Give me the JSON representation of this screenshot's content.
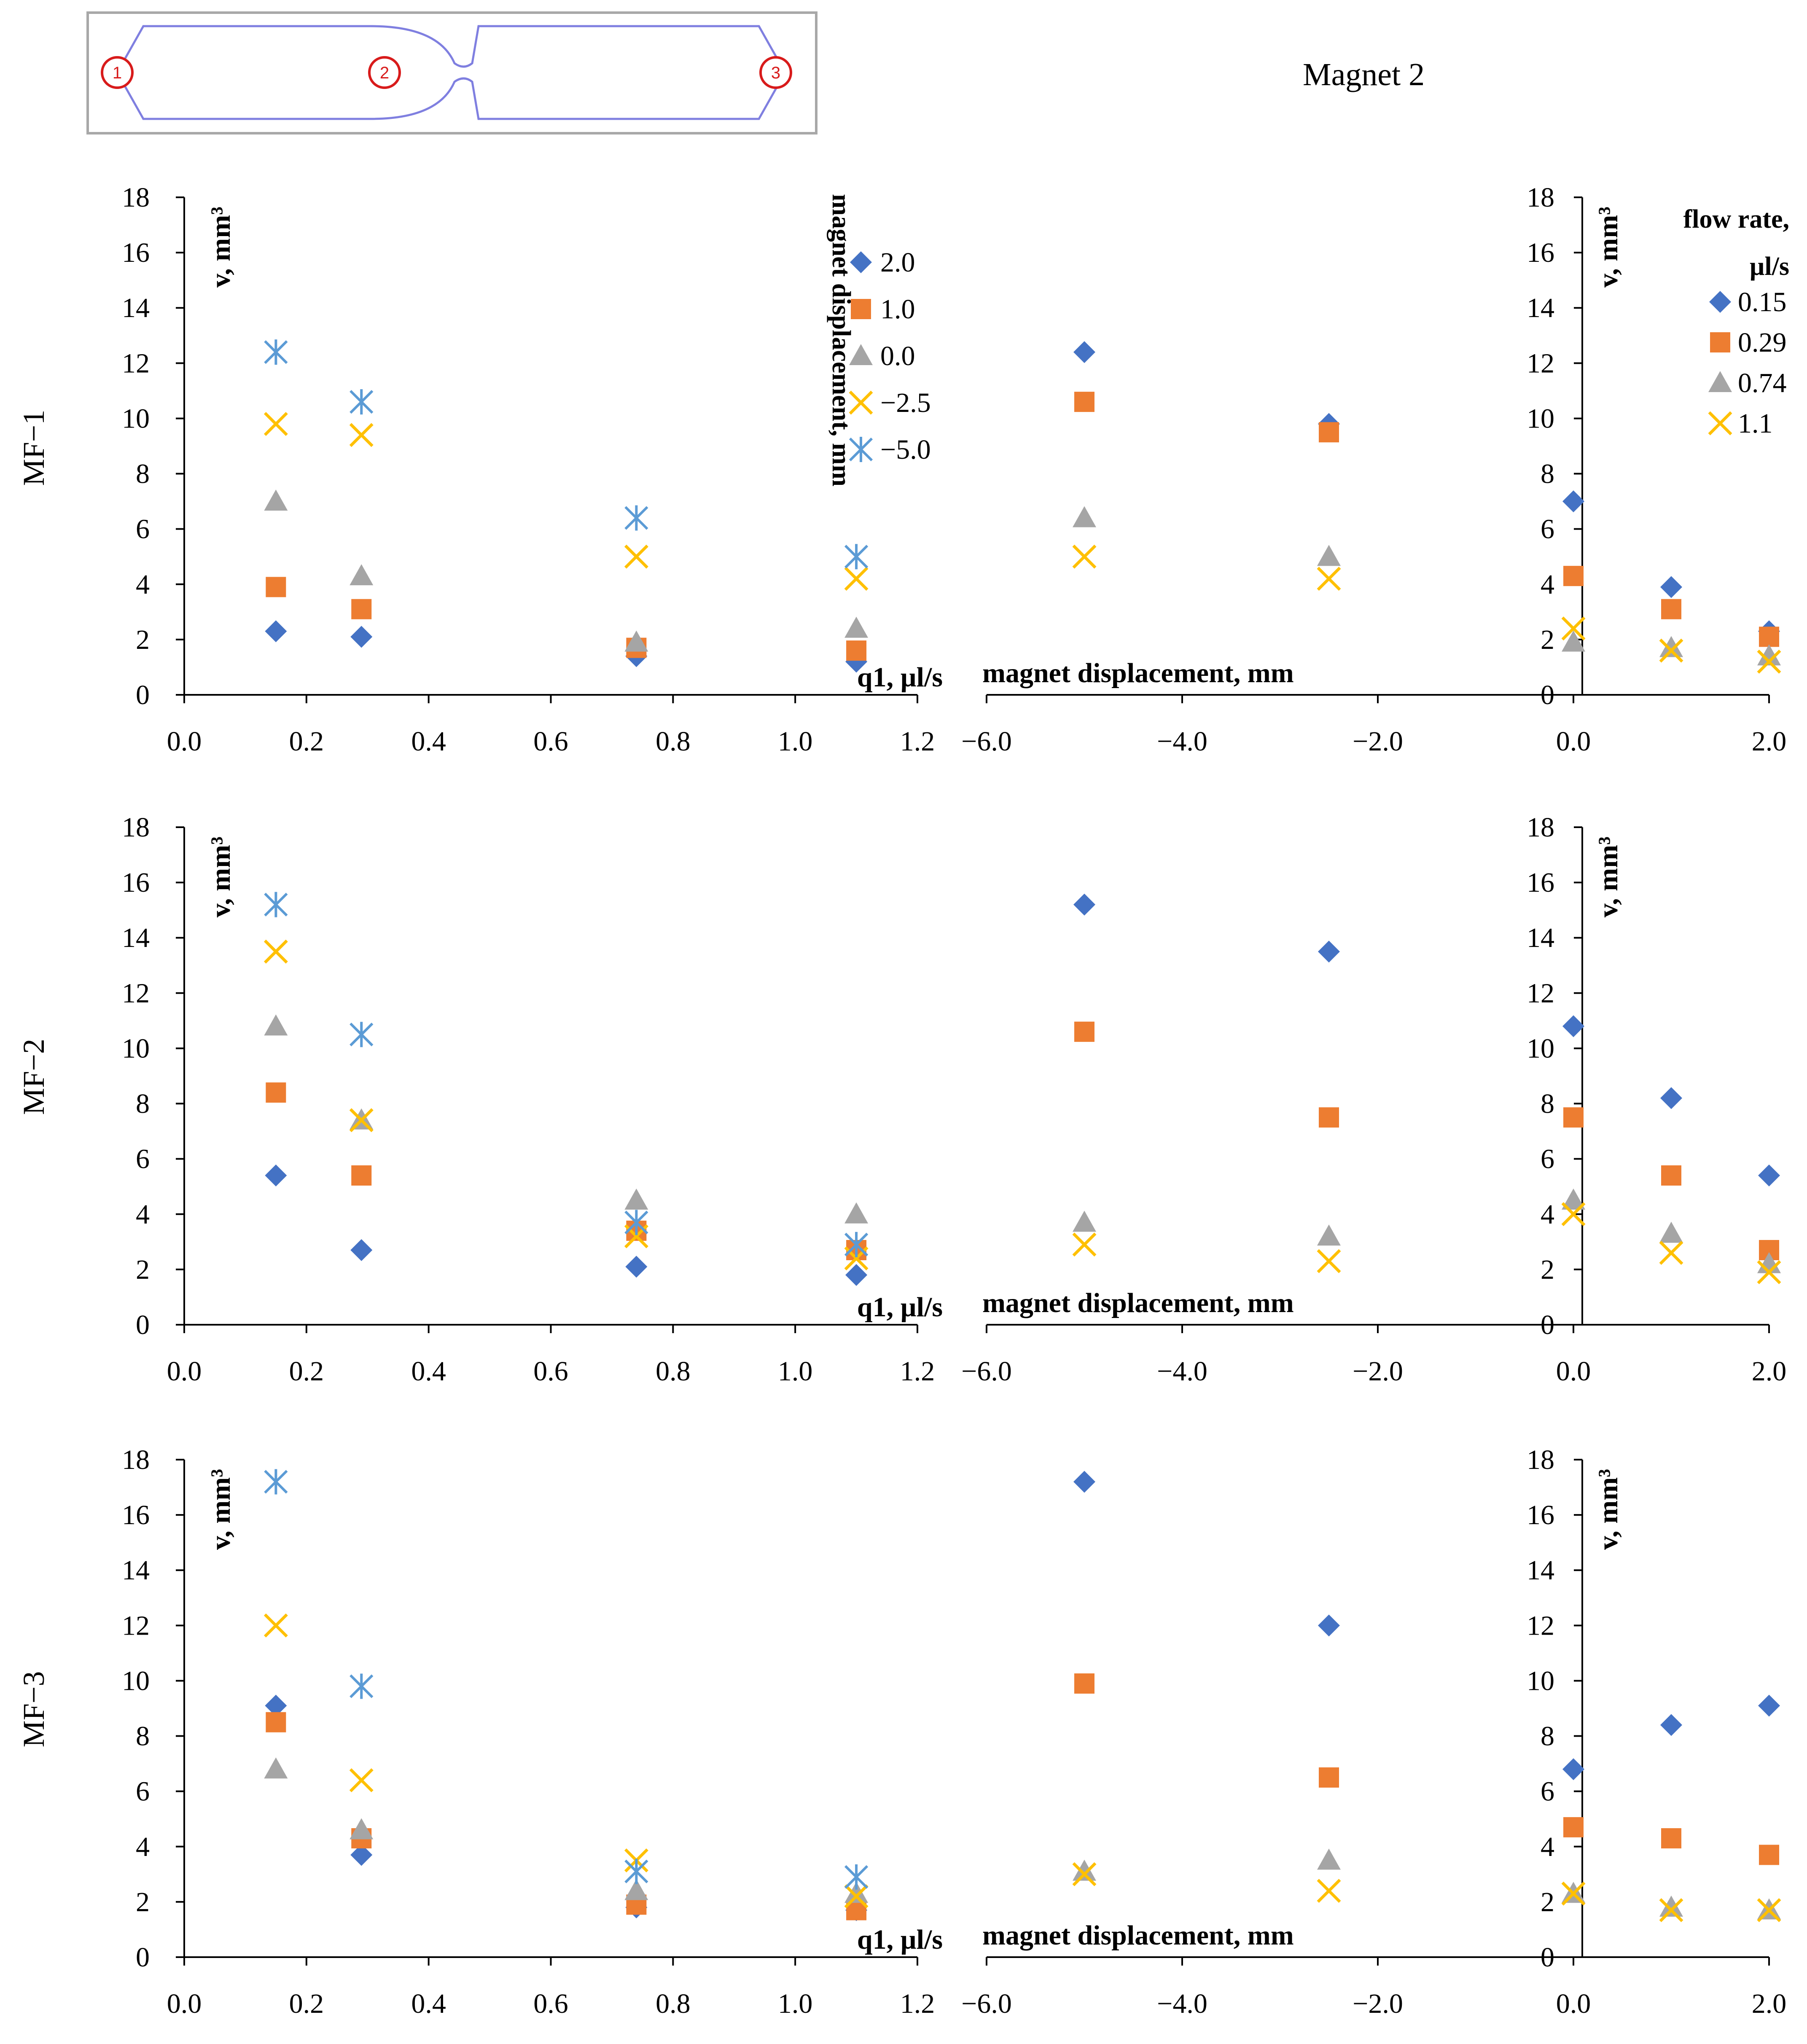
{
  "figure": {
    "title": "Magnet 2",
    "inset_markers": [
      "1",
      "2",
      "3"
    ]
  },
  "colors": {
    "s_2_0": "#4472c4",
    "s_1_0": "#ed7d31",
    "s_0_0": "#a5a5a5",
    "s_m2_5": "#ffc000",
    "s_m5_0": "#5b9bd5",
    "axis": "#000000",
    "inset_channel": "#7f7fe0",
    "inset_marker": "#d81b1b"
  },
  "legend_left": {
    "title": "magnet displacement, mm",
    "entries": [
      {
        "label": "2.0",
        "marker": "diamond",
        "color": "#4472c4"
      },
      {
        "label": "1.0",
        "marker": "square",
        "color": "#ed7d31"
      },
      {
        "label": "0.0",
        "marker": "triangle",
        "color": "#a5a5a5"
      },
      {
        "label": "−2.5",
        "marker": "x",
        "color": "#ffc000"
      },
      {
        "label": "−5.0",
        "marker": "star",
        "color": "#5b9bd5"
      }
    ]
  },
  "legend_right": {
    "title_line1": "flow rate,",
    "title_line2": "µl/s",
    "entries": [
      {
        "label": "0.15",
        "marker": "diamond",
        "color": "#4472c4"
      },
      {
        "label": "0.29",
        "marker": "square",
        "color": "#ed7d31"
      },
      {
        "label": "0.74",
        "marker": "triangle",
        "color": "#a5a5a5"
      },
      {
        "label": "1.1",
        "marker": "x",
        "color": "#ffc000"
      }
    ]
  },
  "axes": {
    "y_title": "v, mm³",
    "y_ticks": [
      "0",
      "2",
      "4",
      "6",
      "8",
      "10",
      "12",
      "14",
      "16",
      "18"
    ],
    "y_range": [
      0,
      18
    ],
    "left_x_title": "q1, µl/s",
    "left_x_ticks": [
      "0.0",
      "0.2",
      "0.4",
      "0.6",
      "0.8",
      "1.0",
      "1.2"
    ],
    "left_x_range": [
      0,
      1.2
    ],
    "right_x_title": "magnet displacement, mm",
    "right_x_ticks_left": [
      "−6.0",
      "−4.0",
      "−2.0"
    ],
    "right_x_ticks_right": [
      "0.0",
      "2.0"
    ],
    "right_x_range": [
      -6,
      2
    ]
  },
  "chart_data": [
    {
      "type": "scatter",
      "row": "MF−1",
      "panel": "flow_rate",
      "xlabel": "q1, µl/s",
      "ylabel": "v, mm³",
      "xlim": [
        0,
        1.2
      ],
      "ylim": [
        0,
        18
      ],
      "series": [
        {
          "name": "2.0",
          "marker": "diamond",
          "color": "#4472c4",
          "x": [
            0.15,
            0.29,
            0.74,
            1.1
          ],
          "y": [
            2.3,
            2.1,
            1.4,
            1.2
          ]
        },
        {
          "name": "1.0",
          "marker": "square",
          "color": "#ed7d31",
          "x": [
            0.15,
            0.29,
            0.74,
            1.1
          ],
          "y": [
            3.9,
            3.1,
            1.7,
            1.6
          ]
        },
        {
          "name": "0.0",
          "marker": "triangle",
          "color": "#a5a5a5",
          "x": [
            0.15,
            0.29,
            0.74,
            1.1
          ],
          "y": [
            7.0,
            4.3,
            1.9,
            2.4
          ]
        },
        {
          "name": "−2.5",
          "marker": "x",
          "color": "#ffc000",
          "x": [
            0.15,
            0.29,
            0.74,
            1.1
          ],
          "y": [
            9.8,
            9.4,
            5.0,
            4.2
          ]
        },
        {
          "name": "−5.0",
          "marker": "star",
          "color": "#5b9bd5",
          "x": [
            0.15,
            0.29,
            0.74,
            1.1
          ],
          "y": [
            12.4,
            10.6,
            6.4,
            5.0
          ]
        }
      ]
    },
    {
      "type": "scatter",
      "row": "MF−1",
      "panel": "magnet_displacement",
      "xlabel": "magnet displacement, mm",
      "ylabel": "v, mm³",
      "xlim": [
        -6,
        2
      ],
      "ylim": [
        0,
        18
      ],
      "series": [
        {
          "name": "0.15",
          "marker": "diamond",
          "color": "#4472c4",
          "x": [
            -5,
            -2.5,
            0,
            1,
            2
          ],
          "y": [
            12.4,
            9.8,
            7.0,
            3.9,
            2.3
          ]
        },
        {
          "name": "0.29",
          "marker": "square",
          "color": "#ed7d31",
          "x": [
            -5,
            -2.5,
            0,
            1,
            2
          ],
          "y": [
            10.6,
            9.5,
            4.3,
            3.1,
            2.1
          ]
        },
        {
          "name": "0.74",
          "marker": "triangle",
          "color": "#a5a5a5",
          "x": [
            -5,
            -2.5,
            0,
            1,
            2
          ],
          "y": [
            6.4,
            5.0,
            1.9,
            1.7,
            1.4
          ]
        },
        {
          "name": "1.1",
          "marker": "x",
          "color": "#ffc000",
          "x": [
            -5,
            -2.5,
            0,
            1,
            2
          ],
          "y": [
            5.0,
            4.2,
            2.4,
            1.6,
            1.2
          ]
        }
      ]
    },
    {
      "type": "scatter",
      "row": "MF−2",
      "panel": "flow_rate",
      "xlabel": "q1, µl/s",
      "ylabel": "v, mm³",
      "xlim": [
        0,
        1.2
      ],
      "ylim": [
        0,
        18
      ],
      "series": [
        {
          "name": "2.0",
          "marker": "diamond",
          "color": "#4472c4",
          "x": [
            0.15,
            0.29,
            0.74,
            1.1
          ],
          "y": [
            5.4,
            2.7,
            2.1,
            1.8
          ]
        },
        {
          "name": "1.0",
          "marker": "square",
          "color": "#ed7d31",
          "x": [
            0.15,
            0.29,
            0.74,
            1.1
          ],
          "y": [
            8.4,
            5.4,
            3.4,
            2.7
          ]
        },
        {
          "name": "0.0",
          "marker": "triangle",
          "color": "#a5a5a5",
          "x": [
            0.15,
            0.29,
            0.74,
            1.1
          ],
          "y": [
            10.8,
            7.4,
            4.5,
            4.0
          ]
        },
        {
          "name": "−2.5",
          "marker": "x",
          "color": "#ffc000",
          "x": [
            0.15,
            0.29,
            0.74,
            1.1
          ],
          "y": [
            13.5,
            7.4,
            3.2,
            2.4
          ]
        },
        {
          "name": "−5.0",
          "marker": "star",
          "color": "#5b9bd5",
          "x": [
            0.15,
            0.29,
            0.74,
            1.1
          ],
          "y": [
            15.2,
            10.5,
            3.7,
            2.9
          ]
        }
      ]
    },
    {
      "type": "scatter",
      "row": "MF−2",
      "panel": "magnet_displacement",
      "xlabel": "magnet displacement, mm",
      "ylabel": "v, mm³",
      "xlim": [
        -6,
        2
      ],
      "ylim": [
        0,
        18
      ],
      "series": [
        {
          "name": "0.15",
          "marker": "diamond",
          "color": "#4472c4",
          "x": [
            -5,
            -2.5,
            0,
            1,
            2
          ],
          "y": [
            15.2,
            13.5,
            10.8,
            8.2,
            5.4
          ]
        },
        {
          "name": "0.29",
          "marker": "square",
          "color": "#ed7d31",
          "x": [
            -5,
            -2.5,
            0,
            1,
            2
          ],
          "y": [
            10.6,
            7.5,
            7.5,
            5.4,
            2.7
          ]
        },
        {
          "name": "0.74",
          "marker": "triangle",
          "color": "#a5a5a5",
          "x": [
            -5,
            -2.5,
            0,
            1,
            2
          ],
          "y": [
            3.7,
            3.2,
            4.5,
            3.3,
            2.2
          ]
        },
        {
          "name": "1.1",
          "marker": "x",
          "color": "#ffc000",
          "x": [
            -5,
            -2.5,
            0,
            1,
            2
          ],
          "y": [
            2.9,
            2.3,
            4.0,
            2.6,
            1.9
          ]
        }
      ]
    },
    {
      "type": "scatter",
      "row": "MF−3",
      "panel": "flow_rate",
      "xlabel": "q1, µl/s",
      "ylabel": "v, mm³",
      "xlim": [
        0,
        1.2
      ],
      "ylim": [
        0,
        18
      ],
      "series": [
        {
          "name": "2.0",
          "marker": "diamond",
          "color": "#4472c4",
          "x": [
            0.15,
            0.29,
            0.74,
            1.1
          ],
          "y": [
            9.1,
            3.7,
            1.8,
            1.7
          ]
        },
        {
          "name": "1.0",
          "marker": "square",
          "color": "#ed7d31",
          "x": [
            0.15,
            0.29,
            0.74,
            1.1
          ],
          "y": [
            8.5,
            4.3,
            1.9,
            1.7
          ]
        },
        {
          "name": "0.0",
          "marker": "triangle",
          "color": "#a5a5a5",
          "x": [
            0.15,
            0.29,
            0.74,
            1.1
          ],
          "y": [
            6.8,
            4.6,
            2.4,
            2.3
          ]
        },
        {
          "name": "−2.5",
          "marker": "x",
          "color": "#ffc000",
          "x": [
            0.15,
            0.29,
            0.74,
            1.1
          ],
          "y": [
            12.0,
            6.4,
            3.5,
            2.2
          ]
        },
        {
          "name": "−5.0",
          "marker": "star",
          "color": "#5b9bd5",
          "x": [
            0.15,
            0.29,
            0.74,
            1.1
          ],
          "y": [
            17.2,
            9.8,
            3.1,
            2.9
          ]
        }
      ]
    },
    {
      "type": "scatter",
      "row": "MF−3",
      "panel": "magnet_displacement",
      "xlabel": "magnet displacement, mm",
      "ylabel": "v, mm³",
      "xlim": [
        -6,
        2
      ],
      "ylim": [
        0,
        18
      ],
      "series": [
        {
          "name": "0.15",
          "marker": "diamond",
          "color": "#4472c4",
          "x": [
            -5,
            -2.5,
            0,
            1,
            2
          ],
          "y": [
            17.2,
            12.0,
            6.8,
            8.4,
            9.1
          ]
        },
        {
          "name": "0.29",
          "marker": "square",
          "color": "#ed7d31",
          "x": [
            -5,
            -2.5,
            0,
            1,
            2
          ],
          "y": [
            9.9,
            6.5,
            4.7,
            4.3,
            3.7
          ]
        },
        {
          "name": "0.74",
          "marker": "triangle",
          "color": "#a5a5a5",
          "x": [
            -5,
            -2.5,
            0,
            1,
            2
          ],
          "y": [
            3.1,
            3.5,
            2.3,
            1.8,
            1.7
          ]
        },
        {
          "name": "1.1",
          "marker": "x",
          "color": "#ffc000",
          "x": [
            -5,
            -2.5,
            0,
            1,
            2
          ],
          "y": [
            3.0,
            2.4,
            2.3,
            1.7,
            1.7
          ]
        }
      ]
    }
  ]
}
